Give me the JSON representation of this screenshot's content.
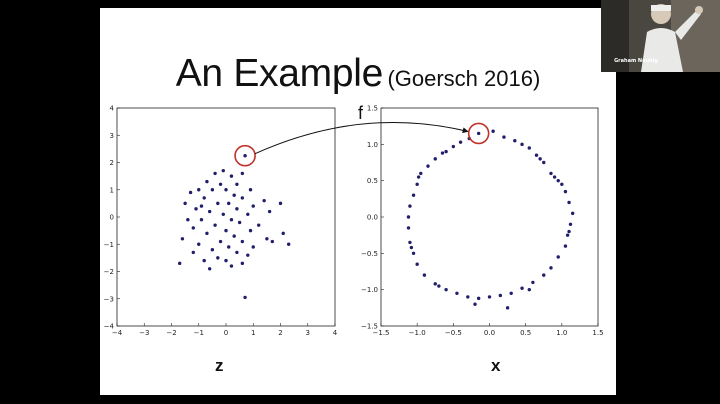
{
  "slide": {
    "title": "An Example",
    "citation": "(Goersch 2016)",
    "function_label": "f",
    "left_axis_variable": "z",
    "right_axis_variable": "x"
  },
  "video_tile": {
    "participant_name": "Graham Neubig"
  },
  "colors": {
    "point": "#1f1f6b",
    "highlight_circle": "#c0322a",
    "background": "#000000",
    "slide": "#ffffff"
  },
  "chart_data": [
    {
      "type": "scatter",
      "title": "",
      "xlabel": "z",
      "ylabel": "",
      "xlim": [
        -4,
        4
      ],
      "ylim": [
        -4,
        4
      ],
      "xticks": [
        -4,
        -3,
        -2,
        -1,
        0,
        1,
        2,
        3,
        4
      ],
      "yticks": [
        -4,
        -3,
        -2,
        -1,
        0,
        1,
        2,
        3,
        4
      ],
      "highlight": [
        0.7,
        2.25
      ],
      "points": [
        [
          0.7,
          2.25
        ],
        [
          -0.1,
          1.7
        ],
        [
          0.6,
          1.6
        ],
        [
          -0.4,
          1.6
        ],
        [
          0.2,
          1.5
        ],
        [
          -0.7,
          1.3
        ],
        [
          -0.2,
          1.2
        ],
        [
          0.4,
          1.2
        ],
        [
          -1.0,
          1.0
        ],
        [
          -0.5,
          1.0
        ],
        [
          0.0,
          1.0
        ],
        [
          0.9,
          1.0
        ],
        [
          -1.3,
          0.9
        ],
        [
          0.3,
          0.8
        ],
        [
          -0.8,
          0.7
        ],
        [
          0.6,
          0.7
        ],
        [
          1.4,
          0.6
        ],
        [
          -1.5,
          0.5
        ],
        [
          -0.3,
          0.5
        ],
        [
          0.1,
          0.5
        ],
        [
          1.0,
          0.4
        ],
        [
          -1.1,
          0.3
        ],
        [
          0.4,
          0.3
        ],
        [
          2.0,
          0.5
        ],
        [
          -0.6,
          0.2
        ],
        [
          -0.1,
          0.1
        ],
        [
          0.8,
          0.1
        ],
        [
          1.6,
          0.2
        ],
        [
          -1.4,
          -0.1
        ],
        [
          -0.9,
          -0.1
        ],
        [
          0.2,
          -0.1
        ],
        [
          0.5,
          -0.2
        ],
        [
          1.2,
          -0.3
        ],
        [
          -0.4,
          -0.3
        ],
        [
          -1.2,
          -0.4
        ],
        [
          0.0,
          -0.5
        ],
        [
          0.9,
          -0.5
        ],
        [
          2.1,
          -0.6
        ],
        [
          -0.7,
          -0.6
        ],
        [
          0.3,
          -0.7
        ],
        [
          -1.6,
          -0.8
        ],
        [
          1.5,
          -0.8
        ],
        [
          -0.2,
          -0.9
        ],
        [
          0.6,
          -0.9
        ],
        [
          -1.0,
          -1.0
        ],
        [
          0.1,
          -1.1
        ],
        [
          1.0,
          -1.1
        ],
        [
          2.3,
          -1.0
        ],
        [
          -0.5,
          -1.2
        ],
        [
          0.4,
          -1.3
        ],
        [
          -1.2,
          -1.3
        ],
        [
          0.8,
          -1.4
        ],
        [
          -0.3,
          -1.5
        ],
        [
          0.0,
          -1.6
        ],
        [
          -0.8,
          -1.6
        ],
        [
          0.6,
          -1.7
        ],
        [
          -1.7,
          -1.7
        ],
        [
          -0.6,
          -1.9
        ],
        [
          0.2,
          -1.8
        ],
        [
          1.7,
          -0.9
        ],
        [
          -0.9,
          0.4
        ],
        [
          0.7,
          -2.95
        ]
      ]
    },
    {
      "type": "scatter",
      "title": "",
      "xlabel": "x",
      "ylabel": "",
      "xlim": [
        -1.5,
        1.5
      ],
      "ylim": [
        -1.5,
        1.5
      ],
      "xticks": [
        -1.5,
        -1.0,
        -0.5,
        0.0,
        0.5,
        1.0,
        1.5
      ],
      "yticks": [
        -1.5,
        -1.0,
        -0.5,
        0.0,
        0.5,
        1.0,
        1.5
      ],
      "highlight": [
        -0.15,
        1.15
      ],
      "points": [
        [
          -0.15,
          1.15
        ],
        [
          0.05,
          1.18
        ],
        [
          0.2,
          1.1
        ],
        [
          0.35,
          1.05
        ],
        [
          0.45,
          1.0
        ],
        [
          0.55,
          0.95
        ],
        [
          0.65,
          0.85
        ],
        [
          0.75,
          0.75
        ],
        [
          0.85,
          0.6
        ],
        [
          0.95,
          0.5
        ],
        [
          1.05,
          0.35
        ],
        [
          1.1,
          0.2
        ],
        [
          1.15,
          0.05
        ],
        [
          1.12,
          -0.1
        ],
        [
          1.08,
          -0.25
        ],
        [
          1.05,
          -0.4
        ],
        [
          0.95,
          -0.55
        ],
        [
          0.85,
          -0.7
        ],
        [
          0.75,
          -0.8
        ],
        [
          0.6,
          -0.9
        ],
        [
          0.45,
          -0.98
        ],
        [
          0.3,
          -1.05
        ],
        [
          0.15,
          -1.08
        ],
        [
          0.0,
          -1.1
        ],
        [
          -0.15,
          -1.12
        ],
        [
          -0.3,
          -1.1
        ],
        [
          -0.45,
          -1.05
        ],
        [
          -0.6,
          -1.0
        ],
        [
          -0.75,
          -0.92
        ],
        [
          -0.9,
          -0.8
        ],
        [
          -1.0,
          -0.65
        ],
        [
          -1.05,
          -0.5
        ],
        [
          -1.1,
          -0.35
        ],
        [
          -1.12,
          -0.15
        ],
        [
          -1.12,
          0.0
        ],
        [
          -1.1,
          0.15
        ],
        [
          -1.05,
          0.3
        ],
        [
          -1.0,
          0.45
        ],
        [
          -0.95,
          0.6
        ],
        [
          -0.85,
          0.7
        ],
        [
          -0.75,
          0.8
        ],
        [
          -0.6,
          0.9
        ],
        [
          -0.5,
          0.97
        ],
        [
          -0.4,
          1.03
        ],
        [
          -0.28,
          1.08
        ],
        [
          0.55,
          -1.0
        ],
        [
          0.9,
          0.55
        ],
        [
          -0.7,
          -0.95
        ],
        [
          1.1,
          -0.2
        ],
        [
          -1.08,
          -0.42
        ],
        [
          0.25,
          -1.25
        ],
        [
          -0.2,
          -1.2
        ],
        [
          0.7,
          0.8
        ],
        [
          -0.65,
          0.88
        ],
        [
          1.0,
          0.45
        ],
        [
          -0.98,
          0.55
        ]
      ]
    }
  ]
}
